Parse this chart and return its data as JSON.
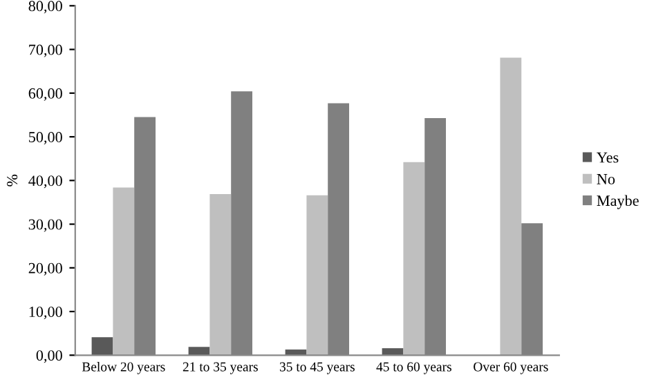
{
  "chart_data": {
    "type": "bar",
    "ylabel": "%",
    "categories": [
      "Below 20 years",
      "21 to 35 years",
      "35 to 45 years",
      "45 to 60 years",
      "Over 60 years"
    ],
    "series": [
      {
        "name": "Yes",
        "color": "#595959",
        "values": [
          4.1,
          1.9,
          1.3,
          1.6,
          0
        ]
      },
      {
        "name": "No",
        "color": "#bfbfbf",
        "values": [
          38.4,
          36.9,
          36.6,
          44.2,
          68.1
        ]
      },
      {
        "name": "Maybe",
        "color": "#808080",
        "values": [
          54.5,
          60.4,
          57.7,
          54.3,
          30.2
        ]
      }
    ],
    "ylim": [
      0,
      80
    ],
    "yticks": [
      {
        "value": 0,
        "label": "0,00"
      },
      {
        "value": 10,
        "label": "10,00"
      },
      {
        "value": 20,
        "label": "20,00"
      },
      {
        "value": 30,
        "label": "30,00"
      },
      {
        "value": 40,
        "label": "40,00"
      },
      {
        "value": 50,
        "label": "50,00"
      },
      {
        "value": 60,
        "label": "60,00"
      },
      {
        "value": 70,
        "label": "70,00"
      },
      {
        "value": 80,
        "label": "80,00"
      }
    ],
    "grid": false,
    "legend": "right"
  }
}
